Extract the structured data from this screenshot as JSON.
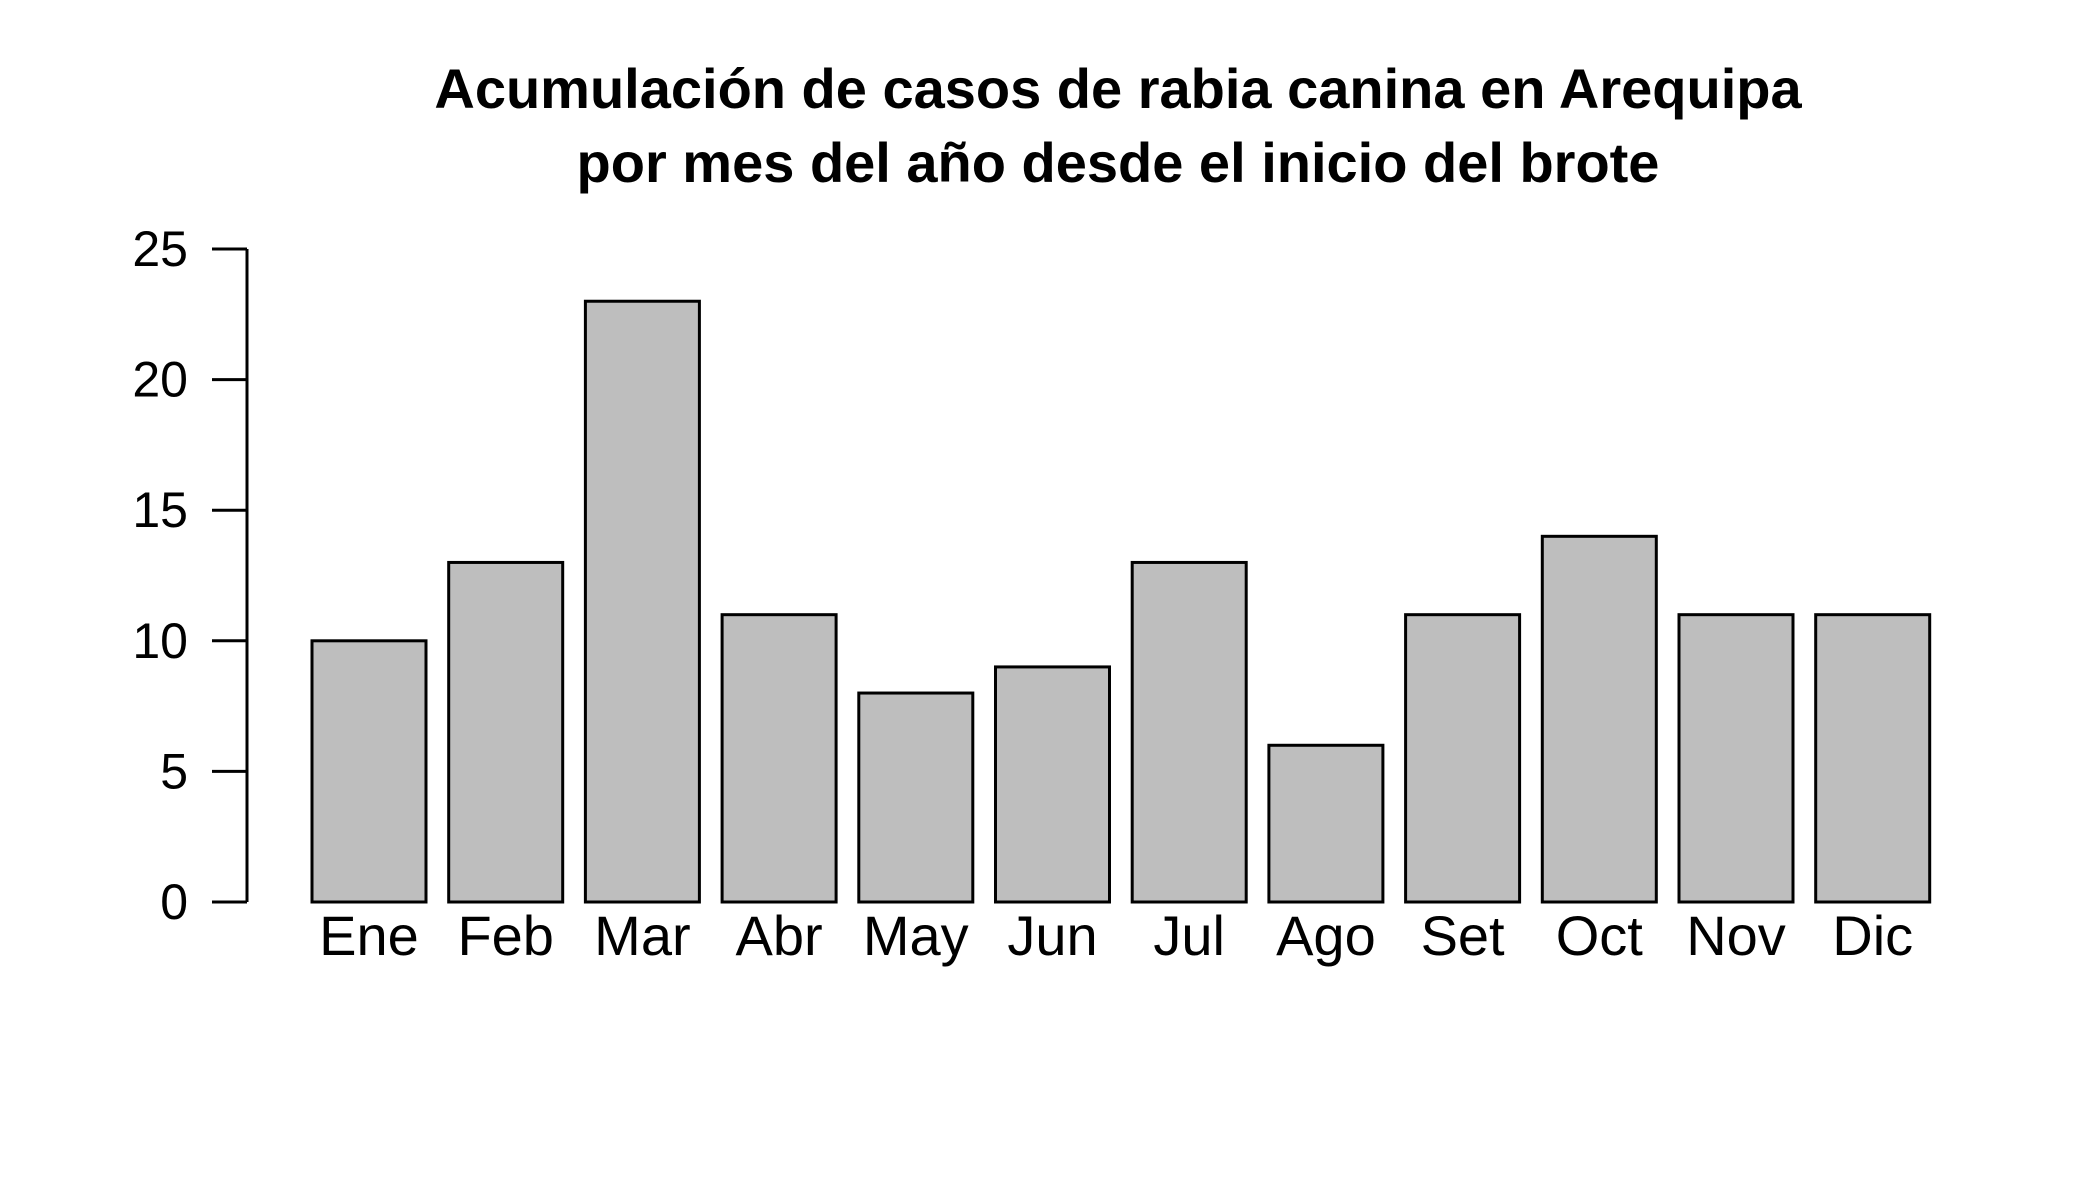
{
  "chart_data": {
    "type": "bar",
    "title": "Acumulación de casos de rabia canina en Arequipa",
    "subtitle": "por mes del año desde el inicio del brote",
    "xlabel": "",
    "ylabel": "",
    "categories": [
      "Ene",
      "Feb",
      "Mar",
      "Abr",
      "May",
      "Jun",
      "Jul",
      "Ago",
      "Set",
      "Oct",
      "Nov",
      "Dic"
    ],
    "values": [
      10,
      13,
      23,
      11,
      8,
      9,
      13,
      6,
      11,
      14,
      11,
      11
    ],
    "ylim": [
      0,
      25
    ],
    "yticks": [
      "0",
      "5",
      "10",
      "15",
      "20",
      "25"
    ],
    "grid": false,
    "legend": "none",
    "bar_color": "#bebebe",
    "edge_color": "#000000"
  }
}
